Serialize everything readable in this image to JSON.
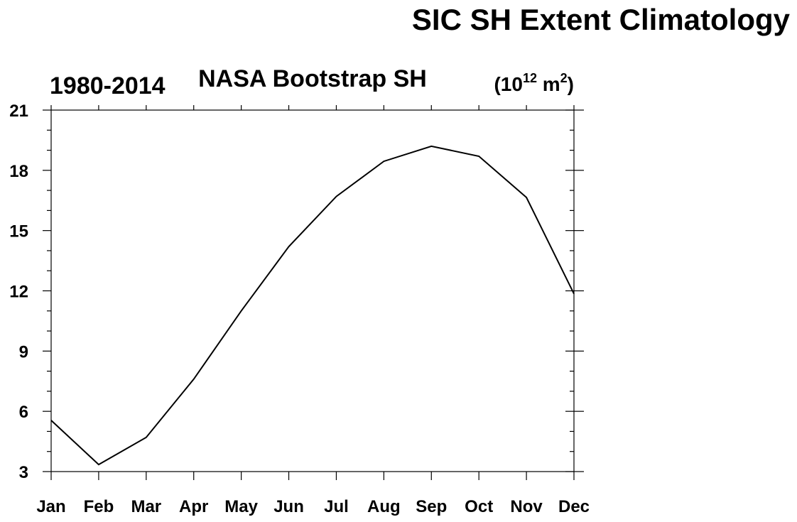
{
  "chart_data": {
    "type": "line",
    "title": "SIC SH Extent Climatology",
    "left_subtitle": "1980-2014",
    "center_subtitle": "NASA Bootstrap SH",
    "units": {
      "open": "(10",
      "power": "12",
      "mid": " m",
      "sq": "2",
      "close": ")"
    },
    "categories": [
      "Jan",
      "Feb",
      "Mar",
      "Apr",
      "May",
      "Jun",
      "Jul",
      "Aug",
      "Sep",
      "Oct",
      "Nov",
      "Dec"
    ],
    "values": [
      5.55,
      3.35,
      4.7,
      7.6,
      11.0,
      14.2,
      16.7,
      18.45,
      19.2,
      18.7,
      16.65,
      11.85
    ],
    "yticks": [
      3,
      6,
      9,
      12,
      15,
      18,
      21
    ],
    "ylim": [
      3,
      21
    ],
    "grid": false,
    "line_color": "#000000"
  }
}
